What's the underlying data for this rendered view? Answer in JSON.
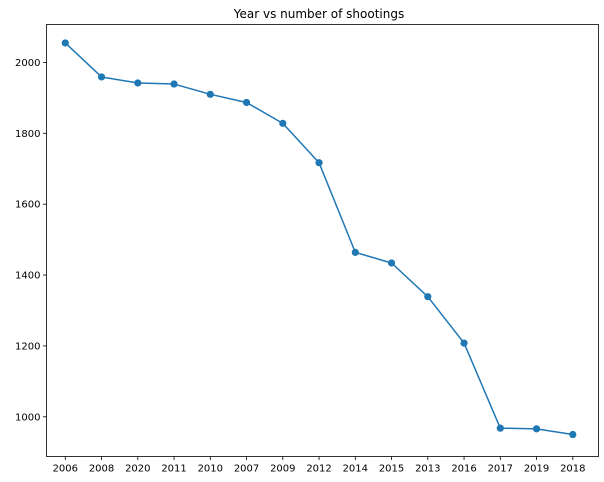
{
  "chart_data": {
    "type": "line",
    "title": "Year vs number of shootings",
    "xlabel": "",
    "ylabel": "",
    "categories": [
      "2006",
      "2008",
      "2020",
      "2011",
      "2010",
      "2007",
      "2009",
      "2012",
      "2014",
      "2015",
      "2013",
      "2016",
      "2017",
      "2019",
      "2018"
    ],
    "series": [
      {
        "values": [
          2055,
          1959,
          1942,
          1939,
          1910,
          1887,
          1828,
          1717,
          1464,
          1434,
          1339,
          1208,
          968,
          966,
          950
        ],
        "color": "#1f77b4",
        "marker": "circle"
      }
    ],
    "ylim": [
      888,
      2107
    ],
    "yticks": [
      1000,
      1200,
      1400,
      1600,
      1800,
      2000
    ],
    "grid": false,
    "legend": "none"
  }
}
